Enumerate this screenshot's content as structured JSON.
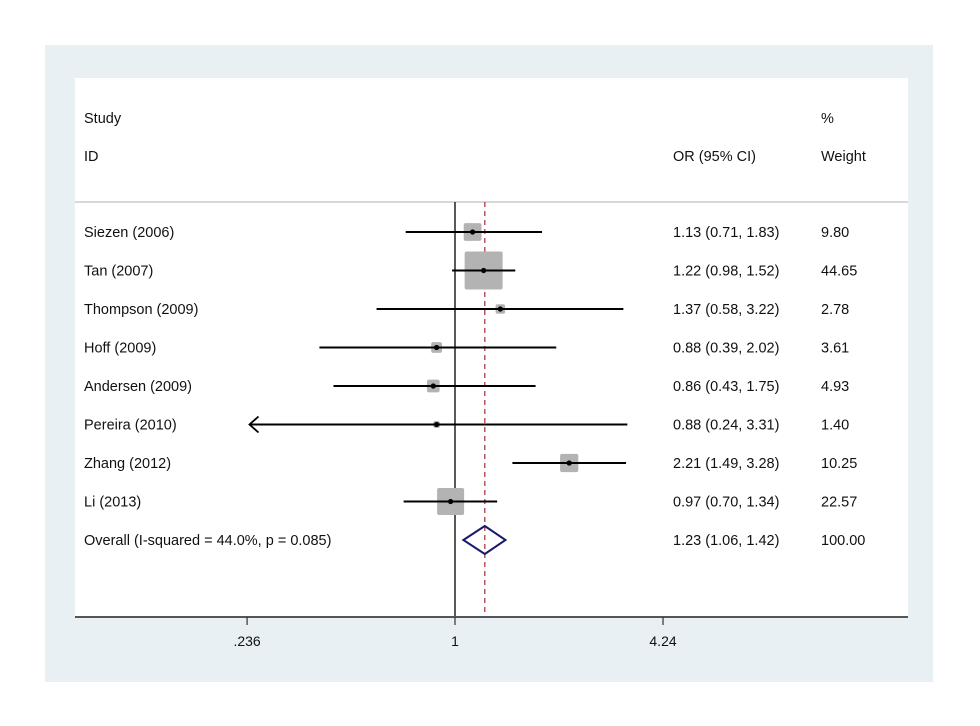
{
  "chart_data": {
    "type": "forest",
    "title": "",
    "xlabel": "",
    "x_scale": "log",
    "x_ticks": [
      0.236,
      1,
      4.24
    ],
    "x_tick_labels": [
      ".236",
      "1",
      "4.24"
    ],
    "xlim": [
      0.236,
      4.24
    ],
    "reference_line": 1,
    "overall_line": 1.23,
    "headers": {
      "study_line1": "Study",
      "study_line2": "ID",
      "effect": "OR (95% CI)",
      "weight_line1": "%",
      "weight_line2": "Weight"
    },
    "studies": [
      {
        "id": "Siezen (2006)",
        "or": 1.13,
        "lo": 0.71,
        "hi": 1.83,
        "label": "1.13 (0.71, 1.83)",
        "weight": 9.8,
        "weight_label": "9.80"
      },
      {
        "id": "Tan (2007)",
        "or": 1.22,
        "lo": 0.98,
        "hi": 1.52,
        "label": "1.22 (0.98, 1.52)",
        "weight": 44.65,
        "weight_label": "44.65"
      },
      {
        "id": "Thompson (2009)",
        "or": 1.37,
        "lo": 0.58,
        "hi": 3.22,
        "label": "1.37 (0.58, 3.22)",
        "weight": 2.78,
        "weight_label": "2.78"
      },
      {
        "id": "Hoff (2009)",
        "or": 0.88,
        "lo": 0.39,
        "hi": 2.02,
        "label": "0.88 (0.39, 2.02)",
        "weight": 3.61,
        "weight_label": "3.61"
      },
      {
        "id": "Andersen (2009)",
        "or": 0.86,
        "lo": 0.43,
        "hi": 1.75,
        "label": "0.86 (0.43, 1.75)",
        "weight": 4.93,
        "weight_label": "4.93"
      },
      {
        "id": "Pereira (2010)",
        "or": 0.88,
        "lo": 0.24,
        "hi": 3.31,
        "label": "0.88 (0.24, 3.31)",
        "weight": 1.4,
        "weight_label": "1.40",
        "arrow_left": true
      },
      {
        "id": "Zhang (2012)",
        "or": 2.21,
        "lo": 1.49,
        "hi": 3.28,
        "label": "2.21 (1.49, 3.28)",
        "weight": 10.25,
        "weight_label": "10.25"
      },
      {
        "id": "Li (2013)",
        "or": 0.97,
        "lo": 0.7,
        "hi": 1.34,
        "label": "0.97 (0.70, 1.34)",
        "weight": 22.57,
        "weight_label": "22.57"
      }
    ],
    "overall": {
      "id": "Overall  (I-squared = 44.0%, p = 0.085)",
      "or": 1.23,
      "lo": 1.06,
      "hi": 1.42,
      "label": "1.23 (1.06, 1.42)",
      "weight_label": "100.00"
    },
    "colors": {
      "background": "#e8f0f3",
      "plot": "#ffffff",
      "box": "#b3b3b3",
      "ci_line": "#000000",
      "reference_line": "#000000",
      "overall_line": "#b03a48",
      "diamond": "#1a1a6e",
      "axis": "#555555"
    }
  }
}
